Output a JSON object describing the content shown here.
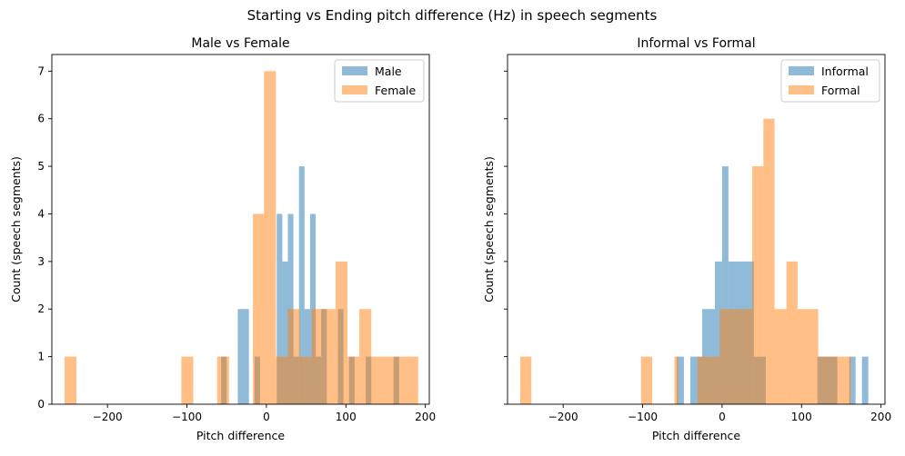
{
  "figure_title": "Starting vs Ending pitch difference (Hz) in speech segments",
  "colors": {
    "series1": "#1f77b4",
    "series2": "#ff7f0e",
    "bar_alpha": 0.5
  },
  "chart_data": [
    {
      "type": "bar",
      "title": "Male vs Female",
      "xlabel": "Pitch difference",
      "ylabel": "Count (speech segments)",
      "xlim": [
        -270,
        205
      ],
      "ylim": [
        0,
        7.35
      ],
      "xticks": [
        -200,
        -100,
        0,
        100,
        200
      ],
      "yticks": [
        0,
        1,
        2,
        3,
        4,
        5,
        6,
        7
      ],
      "grid": false,
      "legend_position": "top-right",
      "series": [
        {
          "name": "Male",
          "color": "#1f77b4",
          "bins": [
            {
              "x0": -57,
              "x1": -50,
              "value": 1
            },
            {
              "x0": -36,
              "x1": -22,
              "value": 2
            },
            {
              "x0": -15,
              "x1": -8,
              "value": 1
            },
            {
              "x0": 13,
              "x1": 20,
              "value": 4
            },
            {
              "x0": 20,
              "x1": 27,
              "value": 3
            },
            {
              "x0": 27,
              "x1": 34,
              "value": 4
            },
            {
              "x0": 34,
              "x1": 41,
              "value": 1
            },
            {
              "x0": 41,
              "x1": 48,
              "value": 5
            },
            {
              "x0": 48,
              "x1": 55,
              "value": 2
            },
            {
              "x0": 55,
              "x1": 62,
              "value": 4
            },
            {
              "x0": 62,
              "x1": 69,
              "value": 1
            },
            {
              "x0": 69,
              "x1": 76,
              "value": 2
            },
            {
              "x0": 90,
              "x1": 97,
              "value": 2
            },
            {
              "x0": 104,
              "x1": 111,
              "value": 1
            },
            {
              "x0": 125,
              "x1": 132,
              "value": 1
            },
            {
              "x0": 160,
              "x1": 167,
              "value": 1
            }
          ]
        },
        {
          "name": "Female",
          "color": "#ff7f0e",
          "bins": [
            {
              "x0": -254,
              "x1": -239,
              "value": 1
            },
            {
              "x0": -107,
              "x1": -92,
              "value": 1
            },
            {
              "x0": -62,
              "x1": -47,
              "value": 1
            },
            {
              "x0": -17,
              "x1": -3,
              "value": 4
            },
            {
              "x0": -3,
              "x1": 12,
              "value": 7
            },
            {
              "x0": 12,
              "x1": 27,
              "value": 1
            },
            {
              "x0": 27,
              "x1": 42,
              "value": 2
            },
            {
              "x0": 42,
              "x1": 57,
              "value": 1
            },
            {
              "x0": 57,
              "x1": 72,
              "value": 2
            },
            {
              "x0": 72,
              "x1": 87,
              "value": 2
            },
            {
              "x0": 87,
              "x1": 102,
              "value": 3
            },
            {
              "x0": 102,
              "x1": 117,
              "value": 1
            },
            {
              "x0": 117,
              "x1": 132,
              "value": 2
            },
            {
              "x0": 132,
              "x1": 146,
              "value": 1
            },
            {
              "x0": 146,
              "x1": 161,
              "value": 1
            },
            {
              "x0": 161,
              "x1": 176,
              "value": 1
            },
            {
              "x0": 176,
              "x1": 191,
              "value": 1
            }
          ]
        }
      ]
    },
    {
      "type": "bar",
      "title": "Informal vs Formal",
      "xlabel": "Pitch difference",
      "ylabel": "Count (speech segments)",
      "xlim": [
        -270,
        205
      ],
      "ylim": [
        0,
        7.35
      ],
      "xticks": [
        -200,
        -100,
        0,
        100,
        200
      ],
      "yticks": [
        0,
        1,
        2,
        3,
        4,
        5,
        6,
        7
      ],
      "grid": false,
      "legend_position": "top-right",
      "series": [
        {
          "name": "Informal",
          "color": "#1f77b4",
          "bins": [
            {
              "x0": -57,
              "x1": -48,
              "value": 1
            },
            {
              "x0": -40,
              "x1": -25,
              "value": 1
            },
            {
              "x0": -25,
              "x1": -9,
              "value": 2
            },
            {
              "x0": -9,
              "x1": 0,
              "value": 3
            },
            {
              "x0": 0,
              "x1": 8,
              "value": 5
            },
            {
              "x0": 8,
              "x1": 40,
              "value": 3
            },
            {
              "x0": 40,
              "x1": 55,
              "value": 1
            },
            {
              "x0": 120,
              "x1": 145,
              "value": 1
            },
            {
              "x0": 160,
              "x1": 168,
              "value": 1
            },
            {
              "x0": 176,
              "x1": 184,
              "value": 1
            }
          ]
        },
        {
          "name": "Formal",
          "color": "#ff7f0e",
          "bins": [
            {
              "x0": -254,
              "x1": -240,
              "value": 1
            },
            {
              "x0": -102,
              "x1": -88,
              "value": 1
            },
            {
              "x0": -60,
              "x1": -55,
              "value": 1
            },
            {
              "x0": -31,
              "x1": -3,
              "value": 1
            },
            {
              "x0": -3,
              "x1": 38,
              "value": 2
            },
            {
              "x0": 38,
              "x1": 52,
              "value": 5
            },
            {
              "x0": 52,
              "x1": 66,
              "value": 6
            },
            {
              "x0": 66,
              "x1": 81,
              "value": 2
            },
            {
              "x0": 81,
              "x1": 95,
              "value": 3
            },
            {
              "x0": 95,
              "x1": 121,
              "value": 2
            },
            {
              "x0": 121,
              "x1": 148,
              "value": 1
            },
            {
              "x0": 148,
              "x1": 162,
              "value": 1
            }
          ]
        }
      ]
    }
  ]
}
